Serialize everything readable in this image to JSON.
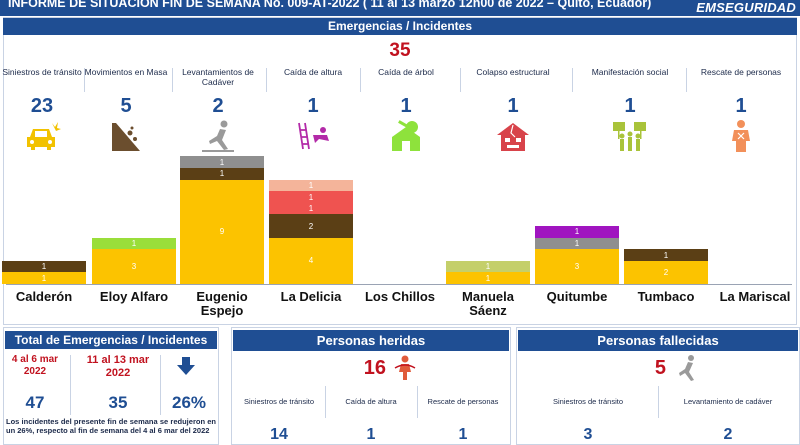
{
  "header": {
    "title": "INFORME DE SITUACIÓN FIN DE SEMANA No. 009-AT-2022 ( 11 al 13 marzo 12h00 de 2022 – Quito, Ecuador)",
    "brand": "EMSEGURIDAD"
  },
  "emergencias": {
    "title": "Emergencias / Incidentes",
    "total": "35",
    "categories": [
      {
        "label": "Siniestros de tránsito",
        "count": "23",
        "icon": "car-crash-icon",
        "color": "#f2c200"
      },
      {
        "label": "Movimientos en Masa",
        "count": "5",
        "icon": "landslide-icon",
        "color": "#6b4e2e"
      },
      {
        "label": "Levantamientos de Cadáver",
        "count": "2",
        "icon": "fallen-person-icon",
        "color": "#9a9a9a"
      },
      {
        "label": "Caída de altura",
        "count": "1",
        "icon": "fall-from-height-icon",
        "color": "#b32aa8"
      },
      {
        "label": "Caída de árbol",
        "count": "1",
        "icon": "fallen-tree-house-icon",
        "color": "#8ee23c"
      },
      {
        "label": "Colapso estructural",
        "count": "1",
        "icon": "collapsed-house-icon",
        "color": "#d8434a"
      },
      {
        "label": "Manifestación social",
        "count": "1",
        "icon": "protest-icon",
        "color": "#a9c33a"
      },
      {
        "label": "Rescate de personas",
        "count": "1",
        "icon": "rescue-person-icon",
        "color": "#f2905a"
      }
    ]
  },
  "colors": {
    "transito": "#fcc300",
    "masa": "#5b3f15",
    "cadaver": "#8f8f8f",
    "altura": "#a015c0",
    "arbol": "#9ade3a",
    "colapso": "#ef5350",
    "manifestacion": "#c4cf6a",
    "rescate": "#f5bea2",
    "header": "#1f4e93",
    "accent_red": "#c1121f"
  },
  "zones": [
    {
      "name": "Calderón",
      "segments": [
        {
          "type": "transito",
          "value": 1
        },
        {
          "type": "masa",
          "value": 1
        }
      ]
    },
    {
      "name": "Eloy Alfaro",
      "segments": [
        {
          "type": "transito",
          "value": 3
        },
        {
          "type": "arbol",
          "value": 1
        }
      ]
    },
    {
      "name": "Eugenio Espejo",
      "segments": [
        {
          "type": "transito",
          "value": 9
        },
        {
          "type": "masa",
          "value": 1
        },
        {
          "type": "cadaver",
          "value": 1
        }
      ]
    },
    {
      "name": "La Delicia",
      "segments": [
        {
          "type": "transito",
          "value": 4
        },
        {
          "type": "masa",
          "value": 2
        },
        {
          "type": "colapso",
          "value": 1
        },
        {
          "type": "rescate_red",
          "value": 1
        },
        {
          "type": "rescate",
          "value": 1
        }
      ]
    },
    {
      "name": "Los Chillos",
      "segments": []
    },
    {
      "name": "Manuela Sáenz",
      "segments": [
        {
          "type": "transito",
          "value": 1
        },
        {
          "type": "manifestacion",
          "value": 1
        }
      ]
    },
    {
      "name": "Quitumbe",
      "segments": [
        {
          "type": "transito",
          "value": 3
        },
        {
          "type": "cadaver",
          "value": 1
        },
        {
          "type": "altura",
          "value": 1
        }
      ]
    },
    {
      "name": "Tumbaco",
      "segments": [
        {
          "type": "transito",
          "value": 2
        },
        {
          "type": "masa",
          "value": 1
        }
      ]
    },
    {
      "name": "La Mariscal",
      "segments": []
    }
  ],
  "total_panel": {
    "title": "Total de Emergencias / Incidentes",
    "prev_period": "4 al 6 mar 2022",
    "curr_period": "11 al 13 mar 2022",
    "prev_value": "47",
    "curr_value": "35",
    "change": "26%",
    "change_icon": "arrow-down-icon",
    "note": "Los incidentes del presente fin de semana se redujeron en un 26%, respecto al fin de semana del 4 al 6 mar del 2022"
  },
  "heridas": {
    "title": "Personas heridas",
    "total": "16",
    "icon": "injured-person-icon",
    "items": [
      {
        "label": "Siniestros de tránsito",
        "value": "14"
      },
      {
        "label": "Caída de altura",
        "value": "1"
      },
      {
        "label": "Rescate de personas",
        "value": "1"
      }
    ]
  },
  "fallecidas": {
    "title": "Personas fallecidas",
    "total": "5",
    "icon": "fallen-person-icon",
    "items": [
      {
        "label": "Siniestros de tránsito",
        "value": "3"
      },
      {
        "label": "Levantamiento de cadáver",
        "value": "2"
      }
    ]
  }
}
